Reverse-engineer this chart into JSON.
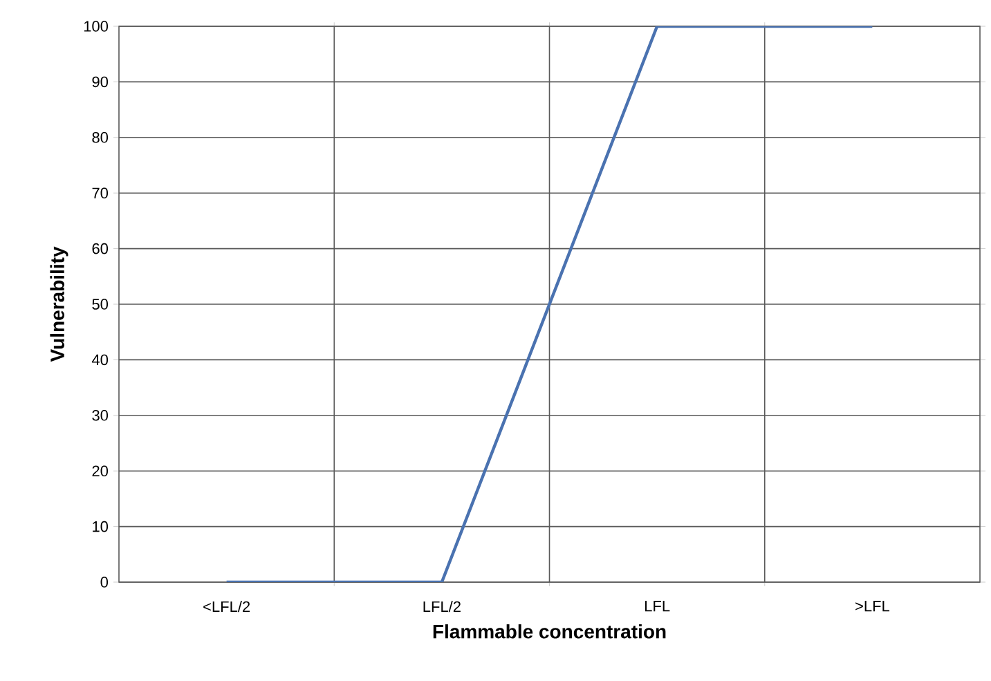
{
  "chart_data": {
    "type": "line",
    "xlabel": "Flammable concentration",
    "ylabel": "Vulnerability",
    "categories": [
      "<LFL/2",
      "LFL/2",
      "LFL",
      ">LFL"
    ],
    "values": [
      0,
      0,
      100,
      100
    ],
    "color": "#4a72b0",
    "ylim": [
      0,
      100
    ],
    "yticks": [
      0,
      10,
      20,
      30,
      40,
      50,
      60,
      70,
      80,
      90,
      100
    ],
    "grid": true,
    "marker": "none",
    "line_style": "solid"
  }
}
